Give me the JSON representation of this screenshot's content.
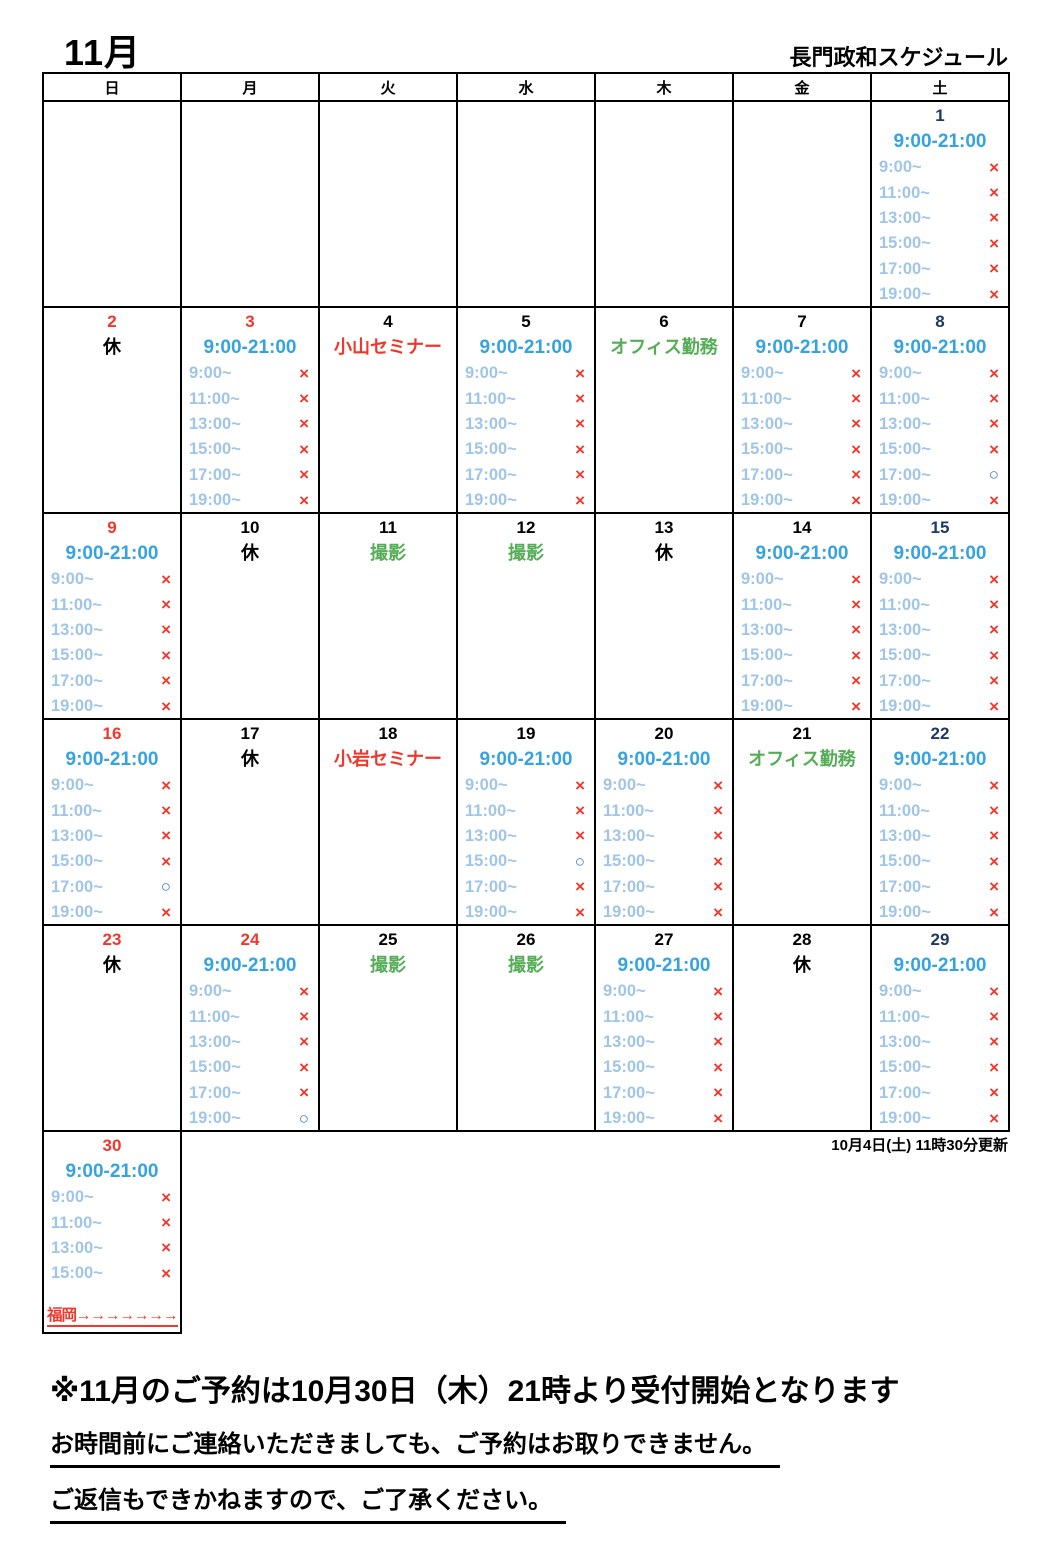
{
  "page": {
    "title": "11月",
    "subtitle": "長門政和スケジュール",
    "updated": "10月4日(土) 11時30分更新",
    "notice1": "※11月のご予約は10月30日（木）21時より受付開始となります",
    "notice2": "お時間前にご連絡いただきましても、ご予約はお取りできません。",
    "notice3": "ご返信もできかねますので、ご了承ください。"
  },
  "weekday_headers": [
    "日",
    "月",
    "火",
    "水",
    "木",
    "金",
    "土"
  ],
  "marks": {
    "x": "×",
    "o": "○"
  },
  "colors": {
    "red": "#f2372a",
    "navy": "#1f3864",
    "cyan": "#35a3e0",
    "slotblue": "#9fc5e8",
    "circle": "#2e75b6",
    "green": "#56ad57"
  },
  "weeks": [
    [
      null,
      null,
      null,
      null,
      null,
      null,
      {
        "type": "slots",
        "date": "1",
        "date_style": "navy",
        "hours": "9:00-21:00",
        "slots": [
          [
            "9:00~",
            "x"
          ],
          [
            "11:00~",
            "x"
          ],
          [
            "13:00~",
            "x"
          ],
          [
            "15:00~",
            "x"
          ],
          [
            "17:00~",
            "x"
          ],
          [
            "19:00~",
            "x"
          ]
        ]
      }
    ],
    [
      {
        "type": "rest",
        "date": "2",
        "date_style": "red",
        "label": "休"
      },
      {
        "type": "slots",
        "date": "3",
        "date_style": "red",
        "hours": "9:00-21:00",
        "slots": [
          [
            "9:00~",
            "x"
          ],
          [
            "11:00~",
            "x"
          ],
          [
            "13:00~",
            "x"
          ],
          [
            "15:00~",
            "x"
          ],
          [
            "17:00~",
            "x"
          ],
          [
            "19:00~",
            "x"
          ]
        ]
      },
      {
        "type": "event",
        "date": "4",
        "date_style": "black",
        "label": "小山セミナー",
        "label_style": "red"
      },
      {
        "type": "slots",
        "date": "5",
        "date_style": "black",
        "hours": "9:00-21:00",
        "slots": [
          [
            "9:00~",
            "x"
          ],
          [
            "11:00~",
            "x"
          ],
          [
            "13:00~",
            "x"
          ],
          [
            "15:00~",
            "x"
          ],
          [
            "17:00~",
            "x"
          ],
          [
            "19:00~",
            "x"
          ]
        ]
      },
      {
        "type": "event",
        "date": "6",
        "date_style": "black",
        "label": "オフィス勤務",
        "label_style": "green"
      },
      {
        "type": "slots",
        "date": "7",
        "date_style": "black",
        "hours": "9:00-21:00",
        "slots": [
          [
            "9:00~",
            "x"
          ],
          [
            "11:00~",
            "x"
          ],
          [
            "13:00~",
            "x"
          ],
          [
            "15:00~",
            "x"
          ],
          [
            "17:00~",
            "x"
          ],
          [
            "19:00~",
            "x"
          ]
        ]
      },
      {
        "type": "slots",
        "date": "8",
        "date_style": "navy",
        "hours": "9:00-21:00",
        "slots": [
          [
            "9:00~",
            "x"
          ],
          [
            "11:00~",
            "x"
          ],
          [
            "13:00~",
            "x"
          ],
          [
            "15:00~",
            "x"
          ],
          [
            "17:00~",
            "o"
          ],
          [
            "19:00~",
            "x"
          ]
        ]
      }
    ],
    [
      {
        "type": "slots",
        "date": "9",
        "date_style": "red",
        "hours": "9:00-21:00",
        "slots": [
          [
            "9:00~",
            "x"
          ],
          [
            "11:00~",
            "x"
          ],
          [
            "13:00~",
            "x"
          ],
          [
            "15:00~",
            "x"
          ],
          [
            "17:00~",
            "x"
          ],
          [
            "19:00~",
            "x"
          ]
        ]
      },
      {
        "type": "rest",
        "date": "10",
        "date_style": "black",
        "label": "休"
      },
      {
        "type": "event",
        "date": "11",
        "date_style": "black",
        "label": "撮影",
        "label_style": "green"
      },
      {
        "type": "event",
        "date": "12",
        "date_style": "black",
        "label": "撮影",
        "label_style": "green"
      },
      {
        "type": "rest",
        "date": "13",
        "date_style": "black",
        "label": "休"
      },
      {
        "type": "slots",
        "date": "14",
        "date_style": "black",
        "hours": "9:00-21:00",
        "slots": [
          [
            "9:00~",
            "x"
          ],
          [
            "11:00~",
            "x"
          ],
          [
            "13:00~",
            "x"
          ],
          [
            "15:00~",
            "x"
          ],
          [
            "17:00~",
            "x"
          ],
          [
            "19:00~",
            "x"
          ]
        ]
      },
      {
        "type": "slots",
        "date": "15",
        "date_style": "navy",
        "hours": "9:00-21:00",
        "slots": [
          [
            "9:00~",
            "x"
          ],
          [
            "11:00~",
            "x"
          ],
          [
            "13:00~",
            "x"
          ],
          [
            "15:00~",
            "x"
          ],
          [
            "17:00~",
            "x"
          ],
          [
            "19:00~",
            "x"
          ]
        ]
      }
    ],
    [
      {
        "type": "slots",
        "date": "16",
        "date_style": "red",
        "hours": "9:00-21:00",
        "slots": [
          [
            "9:00~",
            "x"
          ],
          [
            "11:00~",
            "x"
          ],
          [
            "13:00~",
            "x"
          ],
          [
            "15:00~",
            "x"
          ],
          [
            "17:00~",
            "o"
          ],
          [
            "19:00~",
            "x"
          ]
        ]
      },
      {
        "type": "rest",
        "date": "17",
        "date_style": "black",
        "label": "休"
      },
      {
        "type": "event",
        "date": "18",
        "date_style": "black",
        "label": "小岩セミナー",
        "label_style": "red"
      },
      {
        "type": "slots",
        "date": "19",
        "date_style": "black",
        "hours": "9:00-21:00",
        "slots": [
          [
            "9:00~",
            "x"
          ],
          [
            "11:00~",
            "x"
          ],
          [
            "13:00~",
            "x"
          ],
          [
            "15:00~",
            "o"
          ],
          [
            "17:00~",
            "x"
          ],
          [
            "19:00~",
            "x"
          ]
        ]
      },
      {
        "type": "slots",
        "date": "20",
        "date_style": "black",
        "hours": "9:00-21:00",
        "slots": [
          [
            "9:00~",
            "x"
          ],
          [
            "11:00~",
            "x"
          ],
          [
            "13:00~",
            "x"
          ],
          [
            "15:00~",
            "x"
          ],
          [
            "17:00~",
            "x"
          ],
          [
            "19:00~",
            "x"
          ]
        ]
      },
      {
        "type": "event",
        "date": "21",
        "date_style": "black",
        "label": "オフィス勤務",
        "label_style": "green"
      },
      {
        "type": "slots",
        "date": "22",
        "date_style": "navy",
        "hours": "9:00-21:00",
        "slots": [
          [
            "9:00~",
            "x"
          ],
          [
            "11:00~",
            "x"
          ],
          [
            "13:00~",
            "x"
          ],
          [
            "15:00~",
            "x"
          ],
          [
            "17:00~",
            "x"
          ],
          [
            "19:00~",
            "x"
          ]
        ]
      }
    ],
    [
      {
        "type": "rest",
        "date": "23",
        "date_style": "red",
        "label": "休"
      },
      {
        "type": "slots",
        "date": "24",
        "date_style": "red",
        "hours": "9:00-21:00",
        "slots": [
          [
            "9:00~",
            "x"
          ],
          [
            "11:00~",
            "x"
          ],
          [
            "13:00~",
            "x"
          ],
          [
            "15:00~",
            "x"
          ],
          [
            "17:00~",
            "x"
          ],
          [
            "19:00~",
            "o"
          ]
        ]
      },
      {
        "type": "event",
        "date": "25",
        "date_style": "black",
        "label": "撮影",
        "label_style": "green"
      },
      {
        "type": "event",
        "date": "26",
        "date_style": "black",
        "label": "撮影",
        "label_style": "green"
      },
      {
        "type": "slots",
        "date": "27",
        "date_style": "black",
        "hours": "9:00-21:00",
        "slots": [
          [
            "9:00~",
            "x"
          ],
          [
            "11:00~",
            "x"
          ],
          [
            "13:00~",
            "x"
          ],
          [
            "15:00~",
            "x"
          ],
          [
            "17:00~",
            "x"
          ],
          [
            "19:00~",
            "x"
          ]
        ]
      },
      {
        "type": "rest",
        "date": "28",
        "date_style": "black",
        "label": "休"
      },
      {
        "type": "slots",
        "date": "29",
        "date_style": "navy",
        "hours": "9:00-21:00",
        "slots": [
          [
            "9:00~",
            "x"
          ],
          [
            "11:00~",
            "x"
          ],
          [
            "13:00~",
            "x"
          ],
          [
            "15:00~",
            "x"
          ],
          [
            "17:00~",
            "x"
          ],
          [
            "19:00~",
            "x"
          ]
        ]
      }
    ]
  ],
  "day30": {
    "type": "slots",
    "date": "30",
    "date_style": "red",
    "hours": "9:00-21:00",
    "slots": [
      [
        "9:00~",
        "x"
      ],
      [
        "11:00~",
        "x"
      ],
      [
        "13:00~",
        "x"
      ],
      [
        "15:00~",
        "x"
      ]
    ],
    "note": "福岡→→→→→→→"
  }
}
